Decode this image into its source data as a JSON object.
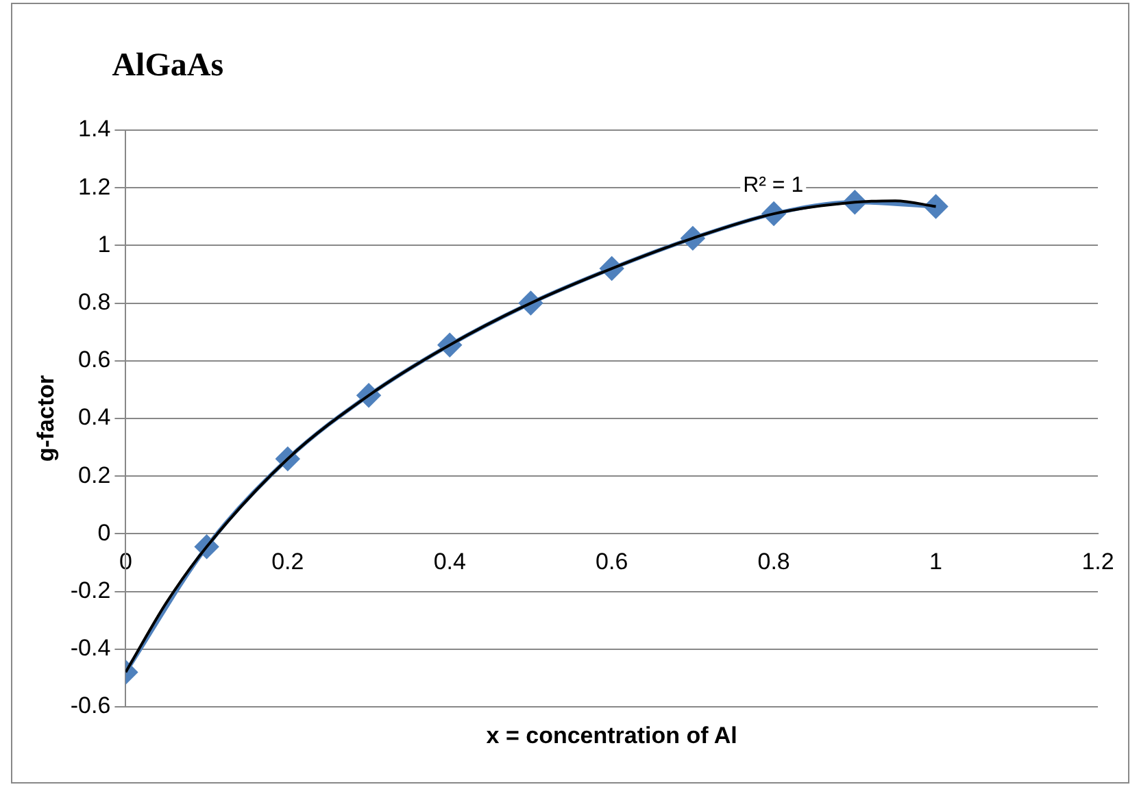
{
  "chart_data": {
    "type": "line",
    "title": "AlGaAs",
    "xlabel": "x = concentration of Al",
    "ylabel": "g-factor",
    "xlim": [
      0,
      1.2
    ],
    "xticks": [
      0,
      0.2,
      0.4,
      0.6,
      0.8,
      1,
      1.2
    ],
    "ylim": [
      -0.6,
      1.4
    ],
    "yticks": [
      -0.6,
      -0.4,
      -0.2,
      0,
      0.2,
      0.4,
      0.6,
      0.8,
      1,
      1.2,
      1.4
    ],
    "grid": "y",
    "legend": false,
    "series": [
      {
        "type": "line",
        "color": "#4f81bd",
        "marker": "diamond",
        "x": [
          0,
          0.1,
          0.2,
          0.3,
          0.4,
          0.5,
          0.6,
          0.7,
          0.8,
          0.9,
          1
        ],
        "values": [
          -0.48,
          -0.045,
          0.26,
          0.48,
          0.655,
          0.8,
          0.92,
          1.025,
          1.11,
          1.15,
          1.135
        ]
      },
      {
        "type": "line",
        "color": "#000000",
        "marker": "none",
        "x": [
          0,
          0.05,
          0.1,
          0.2,
          0.3,
          0.4,
          0.5,
          0.6,
          0.7,
          0.8,
          0.9,
          0.95,
          1
        ],
        "values": [
          -0.48,
          -0.24,
          -0.045,
          0.26,
          0.48,
          0.655,
          0.8,
          0.92,
          1.025,
          1.11,
          1.15,
          1.155,
          1.135
        ]
      }
    ],
    "annotations": [
      "R² = 1"
    ]
  }
}
